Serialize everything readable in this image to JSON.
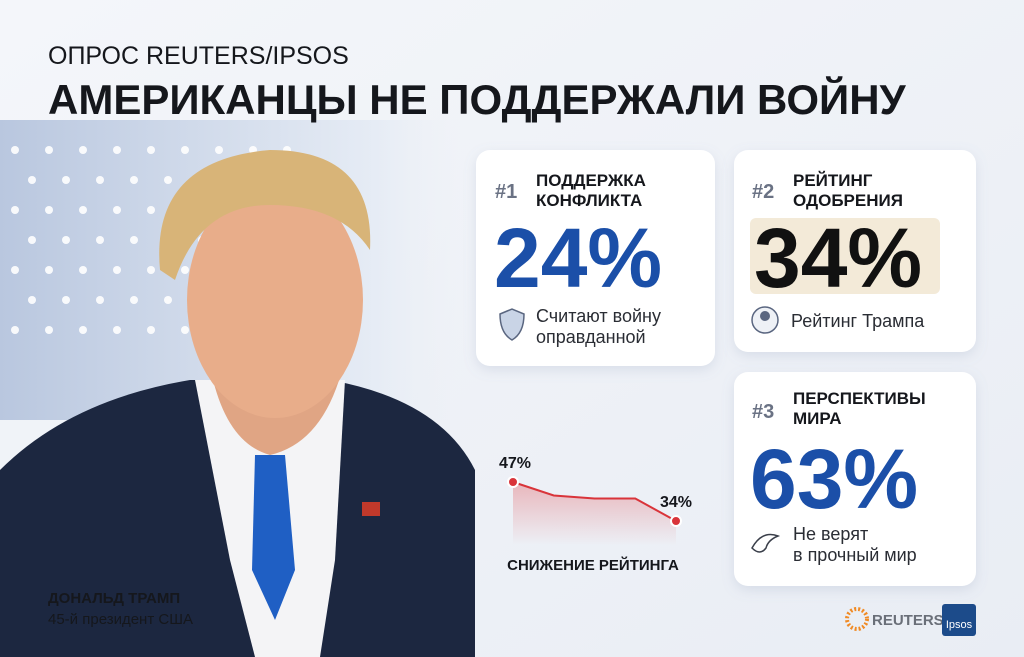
{
  "header": {
    "kicker": "ОПРОС REUTERS/IPSOS",
    "title": "АМЕРИКАНЦЫ НЕ ПОДДЕРЖАЛИ ВОЙНУ"
  },
  "cards": [
    {
      "rank": "#1",
      "label": [
        "ПОДДЕРЖКА",
        "КОНФЛИКТА"
      ],
      "value": "24%",
      "note": [
        "Считают войну",
        "оправданной"
      ]
    },
    {
      "rank": "#2",
      "label": [
        "РЕЙТИНГ",
        "ОДОБРЕНИЯ"
      ],
      "value": "34%",
      "note": [
        "Рейтинг Трампа"
      ]
    },
    {
      "rank": "#3",
      "label": [
        "ПЕРСПЕКТИВЫ",
        "МИРА"
      ],
      "value": "63%",
      "note": [
        "Не верят",
        "в прочный мир"
      ]
    }
  ],
  "chart_data": {
    "type": "line",
    "title": "СНИЖЕНИЕ РЕЙТИНГА",
    "values": [
      47,
      42.5,
      41.5,
      41.5,
      34
    ],
    "value_labels": [
      "47%",
      null,
      null,
      null,
      "34%"
    ],
    "color": "#d9343a"
  },
  "person": {
    "name": "ДОНАЛЬД ТРАМП",
    "caption": "45-й президент США"
  },
  "logos": {
    "reuters": "REUTERS",
    "ipsos": "Ipsos"
  }
}
